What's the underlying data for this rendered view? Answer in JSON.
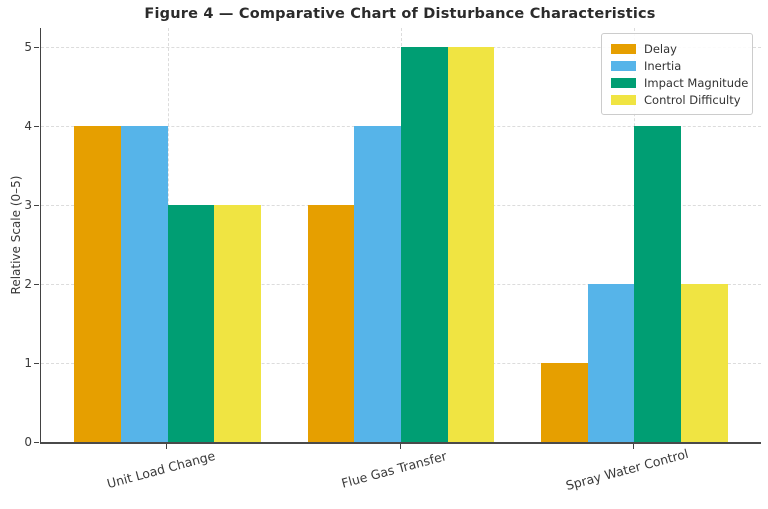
{
  "title": "Figure 4 — Comparative Chart of Disturbance Characteristics",
  "chart_data": {
    "type": "bar",
    "categories": [
      "Unit Load Change",
      "Flue Gas Transfer",
      "Spray Water Control"
    ],
    "series": [
      {
        "name": "Delay",
        "color": "#E69F00",
        "values": [
          4,
          3,
          1
        ]
      },
      {
        "name": "Inertia",
        "color": "#56B4E9",
        "values": [
          4,
          4,
          2
        ]
      },
      {
        "name": "Impact Magnitude",
        "color": "#009E73",
        "values": [
          3,
          5,
          4
        ]
      },
      {
        "name": "Control Difficulty",
        "color": "#F0E442",
        "values": [
          3,
          5,
          2
        ]
      }
    ],
    "title": "Figure 4 — Comparative Chart of Disturbance Characteristics",
    "xlabel": "",
    "ylabel": "Relative Scale (0–5)",
    "ylim": [
      0,
      5
    ],
    "yticks": [
      0,
      1,
      2,
      3,
      4,
      5
    ],
    "grid": true,
    "grid_style": "dashed",
    "legend_position": "upper right",
    "background": "#ffffff",
    "text_color": "#333333"
  }
}
